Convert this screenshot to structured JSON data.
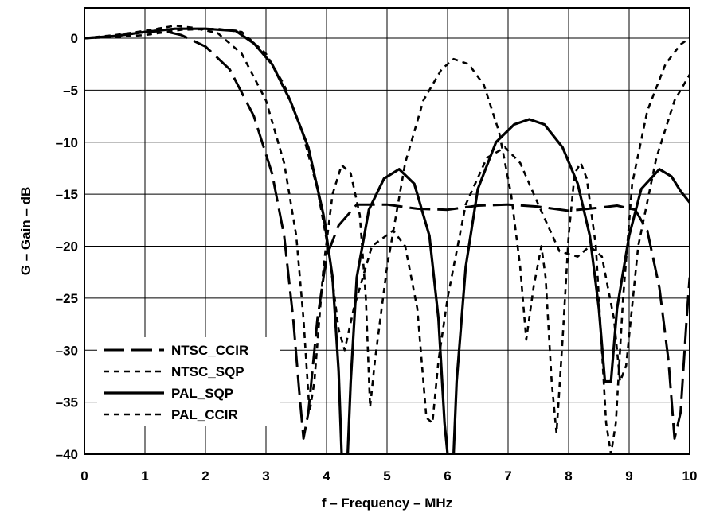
{
  "chart_data": {
    "type": "line",
    "title": "",
    "xlabel": "f – Frequency – MHz",
    "ylabel": "G – Gain – dB",
    "xlim": [
      0,
      10
    ],
    "ylim": [
      -40,
      3
    ],
    "xticks": [
      0,
      1,
      2,
      3,
      4,
      5,
      6,
      7,
      8,
      9,
      10
    ],
    "yticks": [
      0,
      -5,
      -10,
      -15,
      -20,
      -25,
      -30,
      -35,
      -40
    ],
    "ytick_labels": [
      "0",
      "–5",
      "–10",
      "–15",
      "–20",
      "–25",
      "–30",
      "–35",
      "–40"
    ],
    "grid": true,
    "legend_position": "bottom-left",
    "series": [
      {
        "name": "NTSC_CCIR",
        "style": "long-dash",
        "points": [
          [
            0,
            0
          ],
          [
            0.5,
            0.2
          ],
          [
            1,
            0.6
          ],
          [
            1.3,
            0.7
          ],
          [
            1.6,
            0.3
          ],
          [
            2,
            -0.8
          ],
          [
            2.4,
            -3
          ],
          [
            2.8,
            -7.5
          ],
          [
            3.1,
            -13
          ],
          [
            3.3,
            -19
          ],
          [
            3.45,
            -27
          ],
          [
            3.55,
            -34
          ],
          [
            3.62,
            -38.5
          ],
          [
            3.7,
            -36
          ],
          [
            3.85,
            -27
          ],
          [
            4,
            -21
          ],
          [
            4.2,
            -18
          ],
          [
            4.5,
            -16
          ],
          [
            5,
            -16
          ],
          [
            5.5,
            -16.4
          ],
          [
            6,
            -16.5
          ],
          [
            6.5,
            -16.1
          ],
          [
            7,
            -16
          ],
          [
            7.5,
            -16.2
          ],
          [
            8,
            -16.6
          ],
          [
            8.5,
            -16.3
          ],
          [
            8.8,
            -16.1
          ],
          [
            9.1,
            -16.5
          ],
          [
            9.3,
            -18.5
          ],
          [
            9.5,
            -24
          ],
          [
            9.65,
            -31
          ],
          [
            9.75,
            -38.5
          ],
          [
            9.85,
            -36
          ],
          [
            9.95,
            -27
          ],
          [
            10,
            -23
          ]
        ]
      },
      {
        "name": "NTSC_SQP",
        "style": "short-dash",
        "points": [
          [
            0,
            0
          ],
          [
            0.5,
            0.3
          ],
          [
            1,
            0.7
          ],
          [
            1.5,
            1.2
          ],
          [
            1.8,
            1
          ],
          [
            2.2,
            0.5
          ],
          [
            2.6,
            -1.5
          ],
          [
            3,
            -6
          ],
          [
            3.3,
            -12
          ],
          [
            3.5,
            -19
          ],
          [
            3.62,
            -27
          ],
          [
            3.72,
            -36
          ],
          [
            3.8,
            -33
          ],
          [
            3.95,
            -22
          ],
          [
            4.1,
            -15
          ],
          [
            4.25,
            -12.2
          ],
          [
            4.4,
            -13
          ],
          [
            4.55,
            -17
          ],
          [
            4.65,
            -25
          ],
          [
            4.72,
            -35.5
          ],
          [
            4.8,
            -31
          ],
          [
            5,
            -22
          ],
          [
            5.3,
            -12
          ],
          [
            5.6,
            -6
          ],
          [
            5.9,
            -3
          ],
          [
            6.1,
            -2
          ],
          [
            6.35,
            -2.5
          ],
          [
            6.6,
            -4.5
          ],
          [
            6.85,
            -9
          ],
          [
            7.05,
            -15
          ],
          [
            7.2,
            -22
          ],
          [
            7.3,
            -29
          ],
          [
            7.42,
            -24
          ],
          [
            7.55,
            -20
          ],
          [
            7.62,
            -23
          ],
          [
            7.72,
            -33
          ],
          [
            7.8,
            -38
          ],
          [
            7.9,
            -29
          ],
          [
            8,
            -19
          ],
          [
            8.1,
            -13
          ],
          [
            8.2,
            -12
          ],
          [
            8.3,
            -13.5
          ],
          [
            8.45,
            -20
          ],
          [
            8.55,
            -30
          ],
          [
            8.62,
            -37
          ],
          [
            8.7,
            -40
          ],
          [
            8.78,
            -37
          ],
          [
            8.9,
            -25
          ],
          [
            9.05,
            -14
          ],
          [
            9.3,
            -7
          ],
          [
            9.6,
            -2.5
          ],
          [
            9.85,
            -0.6
          ],
          [
            10,
            0
          ]
        ]
      },
      {
        "name": "PAL_SQP",
        "style": "solid",
        "points": [
          [
            0,
            0
          ],
          [
            0.5,
            0.2
          ],
          [
            1,
            0.6
          ],
          [
            1.5,
            0.9
          ],
          [
            2,
            0.9
          ],
          [
            2.5,
            0.7
          ],
          [
            2.8,
            -0.5
          ],
          [
            3.1,
            -2.5
          ],
          [
            3.4,
            -6
          ],
          [
            3.7,
            -10.5
          ],
          [
            3.95,
            -17
          ],
          [
            4.1,
            -23
          ],
          [
            4.2,
            -32
          ],
          [
            4.25,
            -40
          ],
          [
            4.35,
            -40
          ],
          [
            4.4,
            -33
          ],
          [
            4.5,
            -23
          ],
          [
            4.7,
            -16.5
          ],
          [
            4.95,
            -13.5
          ],
          [
            5.2,
            -12.6
          ],
          [
            5.45,
            -14
          ],
          [
            5.7,
            -19
          ],
          [
            5.85,
            -27
          ],
          [
            5.95,
            -37
          ],
          [
            6,
            -40
          ],
          [
            6.1,
            -40
          ],
          [
            6.15,
            -33
          ],
          [
            6.3,
            -22
          ],
          [
            6.5,
            -14.5
          ],
          [
            6.8,
            -10
          ],
          [
            7.1,
            -8.3
          ],
          [
            7.35,
            -7.8
          ],
          [
            7.6,
            -8.3
          ],
          [
            7.9,
            -10.5
          ],
          [
            8.15,
            -14
          ],
          [
            8.35,
            -19
          ],
          [
            8.5,
            -26
          ],
          [
            8.6,
            -33
          ],
          [
            8.7,
            -33
          ],
          [
            8.8,
            -26
          ],
          [
            9,
            -19
          ],
          [
            9.2,
            -14.5
          ],
          [
            9.5,
            -12.6
          ],
          [
            9.7,
            -13.3
          ],
          [
            9.85,
            -14.7
          ],
          [
            10,
            -15.8
          ]
        ]
      },
      {
        "name": "PAL_CCIR",
        "style": "short-dash",
        "points": [
          [
            0,
            0
          ],
          [
            0.5,
            0.1
          ],
          [
            1,
            0.3
          ],
          [
            1.6,
            0.8
          ],
          [
            2.2,
            0.9
          ],
          [
            2.6,
            0.6
          ],
          [
            3,
            -1.5
          ],
          [
            3.3,
            -4.5
          ],
          [
            3.6,
            -9
          ],
          [
            3.85,
            -14.5
          ],
          [
            4.05,
            -21
          ],
          [
            4.2,
            -28
          ],
          [
            4.3,
            -30
          ],
          [
            4.45,
            -26
          ],
          [
            4.75,
            -20
          ],
          [
            5.1,
            -18.5
          ],
          [
            5.3,
            -20
          ],
          [
            5.5,
            -26
          ],
          [
            5.65,
            -36.5
          ],
          [
            5.75,
            -37
          ],
          [
            5.85,
            -31
          ],
          [
            6,
            -25
          ],
          [
            6.3,
            -16
          ],
          [
            6.65,
            -11.5
          ],
          [
            6.95,
            -10.5
          ],
          [
            7.2,
            -12
          ],
          [
            7.5,
            -16
          ],
          [
            7.85,
            -20.5
          ],
          [
            8.15,
            -21
          ],
          [
            8.35,
            -20
          ],
          [
            8.55,
            -21
          ],
          [
            8.75,
            -27
          ],
          [
            8.85,
            -33
          ],
          [
            8.95,
            -31.5
          ],
          [
            9.15,
            -20
          ],
          [
            9.45,
            -11.5
          ],
          [
            9.75,
            -6
          ],
          [
            10,
            -3.5
          ]
        ]
      }
    ]
  }
}
